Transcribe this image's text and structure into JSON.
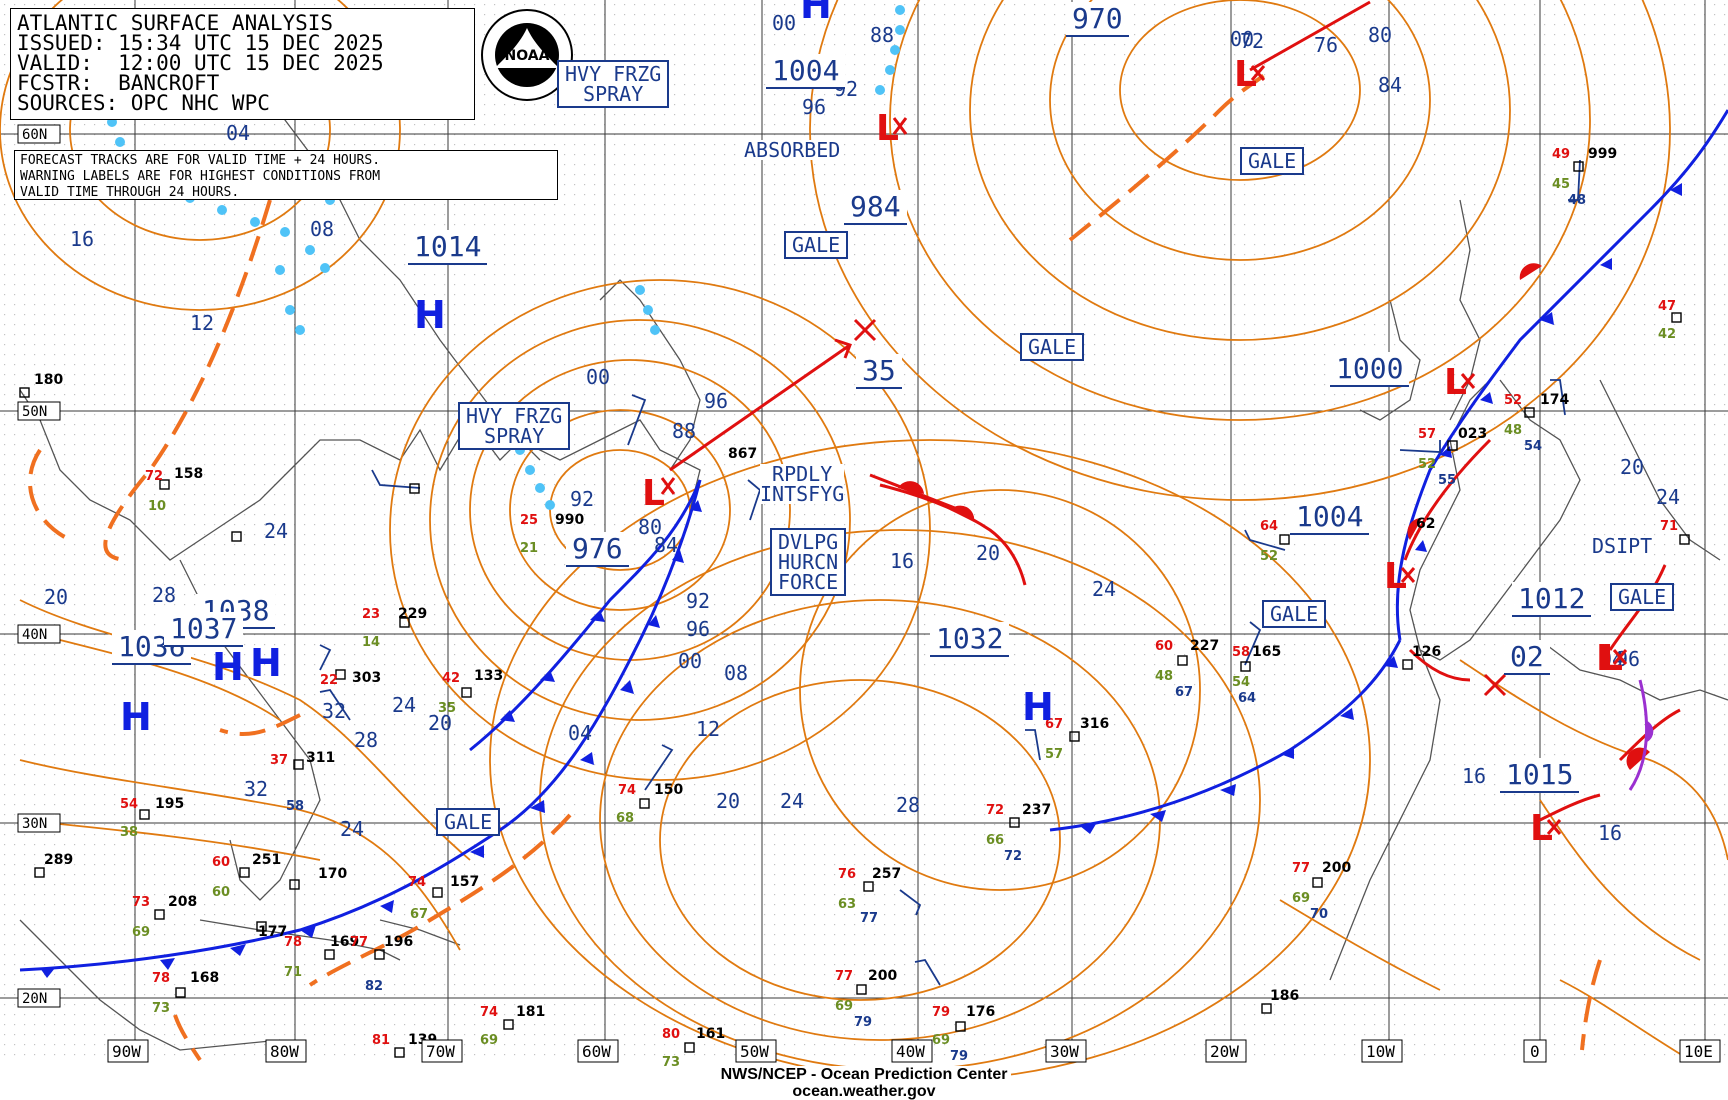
{
  "info": {
    "title": "ATLANTIC SURFACE ANALYSIS",
    "issued": "ISSUED: 15:34 UTC 15 DEC 2025",
    "valid": "VALID:  12:00 UTC 15 DEC 2025",
    "forecaster": "FCSTR:  BANCROFT",
    "sources": "SOURCES: OPC NHC WPC"
  },
  "note": "FORECAST TRACKS ARE FOR VALID TIME + 24 HOURS.\nWARNING LABELS ARE FOR HIGHEST CONDITIONS FROM\nVALID TIME THROUGH 24 HOURS.",
  "logo_text": "NOAA",
  "footer": {
    "line1": "NWS/NCEP - Ocean Prediction Center",
    "line2": "ocean.weather.gov"
  },
  "lon_labels": [
    "90W",
    "80W",
    "70W",
    "60W",
    "50W",
    "40W",
    "30W",
    "20W",
    "10W",
    "0",
    "10E"
  ],
  "lat_labels": [
    "60N",
    "50N",
    "40N",
    "30N",
    "20N"
  ],
  "warnings": {
    "hvy_frzg_1": "HVY FRZG\nSPRAY",
    "hvy_frzg_2": "HVY FRZG\nSPRAY",
    "dvlpg": "DVLPG\nHURCN\nFORCE",
    "gale_1": "GALE",
    "gale_2": "GALE",
    "gale_3": "GALE",
    "gale_4": "GALE",
    "gale_5": "GALE",
    "gale_6": "GALE",
    "rpdly": "RPDLY\nINTSFYG",
    "absorbed": "ABSORBED",
    "dsipt": "DSIPT"
  },
  "pressure_centers": {
    "p1014": "1014",
    "p1004a": "1004",
    "p984": "984",
    "p970": "970",
    "p976": "976",
    "p1036": "1036",
    "p1038": "1038",
    "p1037": "1037",
    "p1032": "1032",
    "p1004b": "1004",
    "p1000": "1000",
    "p1012": "1012",
    "p1015": "1015",
    "p35": "35",
    "p02": "02"
  },
  "highs": [
    "H",
    "H",
    "H",
    "H",
    "H",
    "H"
  ],
  "lows": [
    "L",
    "L",
    "L",
    "L",
    "L",
    "L",
    "L",
    "L"
  ],
  "isobar_labels": [
    "16",
    "12",
    "08",
    "04",
    "00",
    "96",
    "88",
    "92",
    "80",
    "84",
    "92",
    "96",
    "00",
    "08",
    "04",
    "12",
    "20",
    "24",
    "28",
    "16",
    "20",
    "24",
    "24",
    "28",
    "32",
    "24",
    "20",
    "32",
    "28",
    "24",
    "20",
    "16",
    "16",
    "20",
    "24",
    "00",
    "96",
    "88",
    "92",
    "96",
    "04",
    "00",
    "72",
    "76",
    "80",
    "84"
  ],
  "stations": [
    {
      "val": "180"
    },
    {
      "val": "158"
    },
    {
      "val": "229"
    },
    {
      "val": "303"
    },
    {
      "val": "133"
    },
    {
      "val": "311"
    },
    {
      "val": "195"
    },
    {
      "val": "289"
    },
    {
      "val": "251"
    },
    {
      "val": "170"
    },
    {
      "val": "208"
    },
    {
      "val": "177"
    },
    {
      "val": "169"
    },
    {
      "val": "196"
    },
    {
      "val": "168"
    },
    {
      "val": "157"
    },
    {
      "val": "150"
    },
    {
      "val": "867"
    },
    {
      "val": "990"
    },
    {
      "val": "181"
    },
    {
      "val": "139"
    },
    {
      "val": "161"
    },
    {
      "val": "257"
    },
    {
      "val": "200"
    },
    {
      "val": "176"
    },
    {
      "val": "237"
    },
    {
      "val": "316"
    },
    {
      "val": "227"
    },
    {
      "val": "165"
    },
    {
      "val": "200"
    },
    {
      "val": "186"
    },
    {
      "val": "126"
    },
    {
      "val": "023"
    },
    {
      "val": "174"
    },
    {
      "val": "999"
    },
    {
      "val": "62"
    }
  ],
  "colors": {
    "isobar": "#e07a10",
    "front_blue": "#1020e0",
    "front_red": "#e01010",
    "label_blue": "#1a3a8c",
    "grid": "#3a3a3a",
    "coast": "#555555",
    "warm_front": "#e01010",
    "occluded": "#9b30d0",
    "ice": "#4fc3f7"
  }
}
